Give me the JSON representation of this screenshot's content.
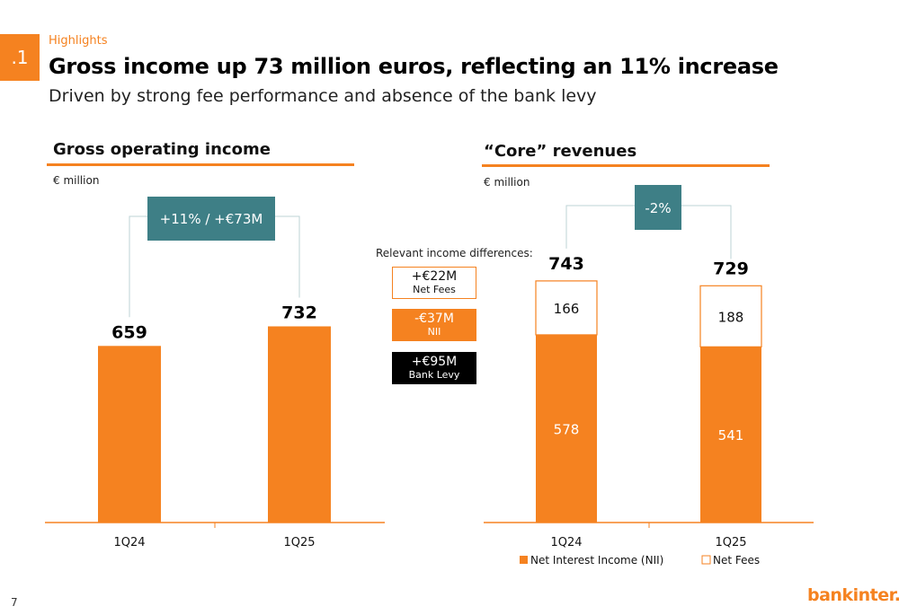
{
  "header": {
    "section_number": ".1",
    "kicker": "Highlights",
    "title": "Gross income up 73 million euros, reflecting an 11% increase",
    "subtitle": "Driven by strong fee performance and absence of the bank levy"
  },
  "left_panel": {
    "title": "Gross operating income",
    "unit": "€ million",
    "growth_badge": "+11% / +€73M"
  },
  "right_panel": {
    "title": "“Core” revenues",
    "unit": "€ million",
    "growth_badge": "-2%"
  },
  "relevant_differences": {
    "label": "Relevant income differences:",
    "items": [
      {
        "value": "+€22M",
        "label": "Net Fees"
      },
      {
        "value": "-€37M",
        "label": "NII"
      },
      {
        "value": "+€95M",
        "label": "Bank Levy"
      }
    ]
  },
  "footer": {
    "page_number": "7",
    "logo_text": "bankinter."
  },
  "colors": {
    "accent": "#f58220",
    "teal": "#3e7f86",
    "black": "#000000"
  },
  "chart_data": [
    {
      "type": "bar",
      "title": "Gross operating income",
      "ylabel": "€ million",
      "categories": [
        "1Q24",
        "1Q25"
      ],
      "values": [
        659,
        732
      ],
      "annotation": "+11% / +€73M"
    },
    {
      "type": "bar",
      "stacked": true,
      "title": "“Core” revenues",
      "ylabel": "€ million",
      "categories": [
        "1Q24",
        "1Q25"
      ],
      "series": [
        {
          "name": "Net Interest Income (NII)",
          "values": [
            578,
            541
          ],
          "color": "#f58220"
        },
        {
          "name": "Net Fees",
          "values": [
            166,
            188
          ],
          "color": "#ffffff"
        }
      ],
      "totals": [
        743,
        729
      ],
      "annotation": "-2%",
      "legend": "bottom"
    }
  ]
}
